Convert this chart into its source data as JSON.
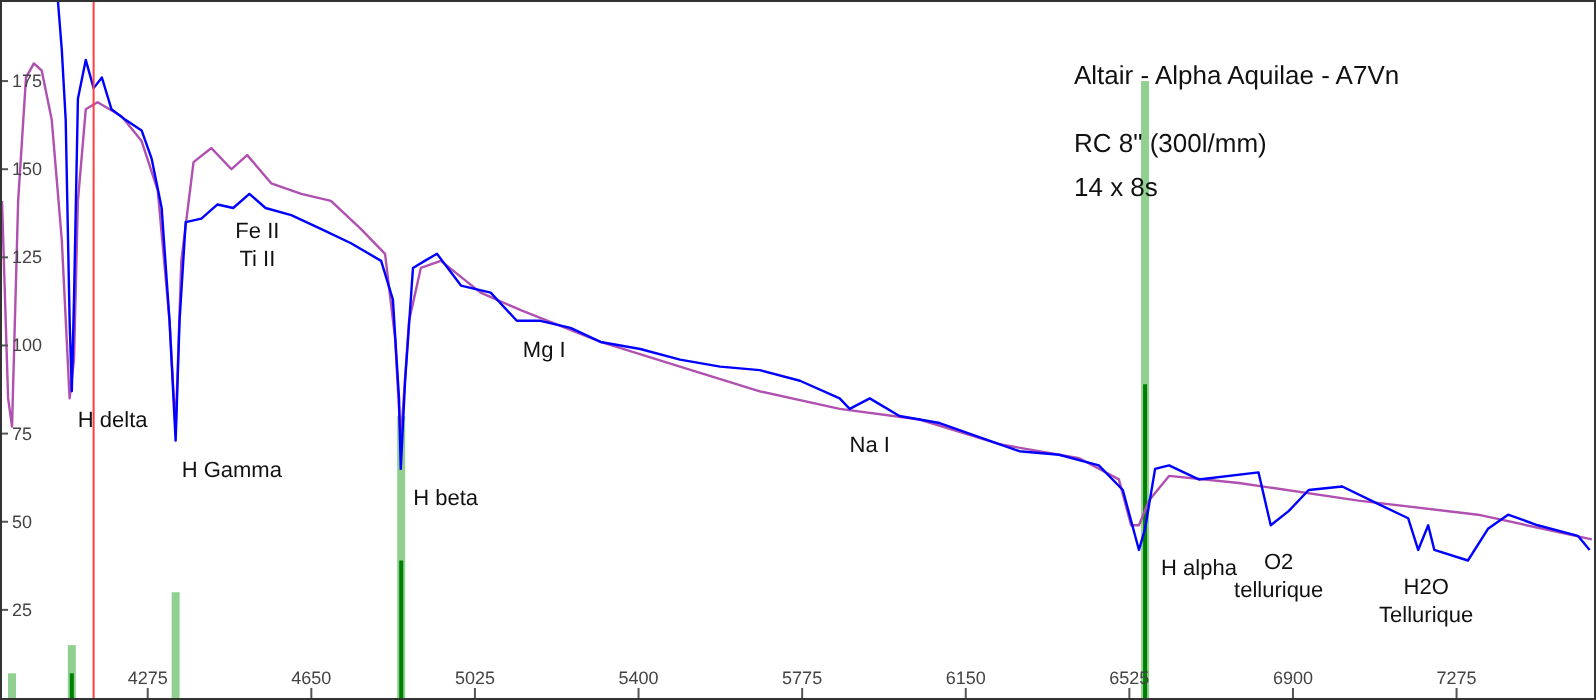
{
  "chart_data": {
    "type": "line",
    "xlim": [
      3941,
      7590
    ],
    "ylim": [
      0,
      198
    ],
    "xticks": [
      4275,
      4650,
      5025,
      5400,
      5775,
      6150,
      6525,
      6900,
      7275
    ],
    "yticks": [
      25,
      50,
      75,
      100,
      125,
      150,
      175
    ],
    "grid": false,
    "series": [
      {
        "type": "bar",
        "color": "#90d090",
        "x": [
          3964,
          4101,
          4339,
          4856,
          6561
        ],
        "values": [
          7,
          15,
          30,
          80,
          175
        ]
      },
      {
        "type": "bar",
        "color": "#008000",
        "x": [
          4101,
          4856,
          6561
        ],
        "values": [
          7,
          39,
          89
        ]
      },
      {
        "color": "#b050b0",
        "x": [
          3941,
          3955,
          3964,
          3978,
          3996,
          4014,
          4032,
          4055,
          4078,
          4096,
          4106,
          4115,
          4133,
          4160,
          4215,
          4261,
          4298,
          4325,
          4339,
          4352,
          4380,
          4421,
          4467,
          4503,
          4558,
          4627,
          4695,
          4764,
          4819,
          4842,
          4855,
          4874,
          4901,
          4947,
          5038,
          5130,
          5313,
          5495,
          5678,
          5861,
          6044,
          6227,
          6410,
          6501,
          6529,
          6547,
          6570,
          6616,
          6776,
          7050,
          7324,
          7585
        ],
        "values": [
          141,
          85,
          77,
          141,
          176,
          180,
          178,
          164,
          130,
          85,
          96,
          141,
          167,
          169,
          165,
          158,
          144,
          107,
          76,
          124,
          152,
          156,
          150,
          154,
          146,
          143,
          141,
          133,
          126,
          102,
          73,
          107,
          122,
          124,
          115,
          110,
          101,
          94,
          87,
          82,
          79,
          72,
          68,
          62,
          49,
          49,
          56,
          63,
          61,
          56,
          52,
          45
        ]
      },
      {
        "color": "#0000ff",
        "x": [
          4069,
          4078,
          4087,
          4096,
          4101,
          4106,
          4115,
          4133,
          4151,
          4170,
          4192,
          4224,
          4261,
          4284,
          4307,
          4325,
          4339,
          4348,
          4362,
          4398,
          4435,
          4471,
          4508,
          4545,
          4604,
          4673,
          4741,
          4810,
          4837,
          4851,
          4855,
          4865,
          4883,
          4910,
          4938,
          4993,
          5061,
          5121,
          5175,
          5244,
          5313,
          5404,
          5495,
          5587,
          5678,
          5770,
          5861,
          5884,
          5930,
          5998,
          6090,
          6181,
          6273,
          6364,
          6455,
          6510,
          6547,
          6561,
          6584,
          6616,
          6684,
          6821,
          6849,
          6890,
          6936,
          7013,
          7096,
          7164,
          7187,
          7210,
          7224,
          7301,
          7347,
          7393,
          7461,
          7553,
          7580
        ],
        "values": [
          198,
          184,
          164,
          107,
          87,
          113,
          170,
          181,
          173,
          176,
          167,
          164,
          161,
          153,
          139,
          107,
          73,
          107,
          135,
          136,
          140,
          139,
          143,
          139,
          137,
          133,
          129,
          124,
          113,
          85,
          65,
          90,
          122,
          124,
          126,
          117,
          115,
          107,
          107,
          105,
          101,
          99,
          96,
          94,
          93,
          90,
          85,
          82,
          85,
          80,
          78,
          74,
          70,
          69,
          66,
          59,
          42,
          48,
          65,
          66,
          62,
          64,
          49,
          53,
          59,
          60,
          55,
          51,
          42,
          49,
          42,
          39,
          48,
          52,
          49,
          46,
          42
        ]
      }
    ],
    "ref_lines": [
      {
        "axis": "x",
        "value": 4151,
        "color": "#ff4040"
      }
    ],
    "annotations": [
      "Altair - Alpha Aquilae - A7Vn",
      "RC 8\" (300l/mm)",
      "14 x 8s",
      {
        "text": "H delta",
        "x": 4101,
        "y": 87
      },
      {
        "text": "H Gamma",
        "x": 4339,
        "y": 73
      },
      {
        "text": "Fe II\nTi II",
        "x": 4508,
        "y": 143
      },
      {
        "text": "H beta",
        "x": 4870,
        "y": 65
      },
      {
        "text": "Mg I",
        "x": 5121,
        "y": 107
      },
      {
        "text": "Na I",
        "x": 5870,
        "y": 80
      },
      {
        "text": "H alpha",
        "x": 6584,
        "y": 45
      },
      {
        "text": "O2\ntellurique",
        "x": 6849,
        "y": 49
      },
      {
        "text": "H2O\nTellurique",
        "x": 7187,
        "y": 42
      }
    ]
  }
}
